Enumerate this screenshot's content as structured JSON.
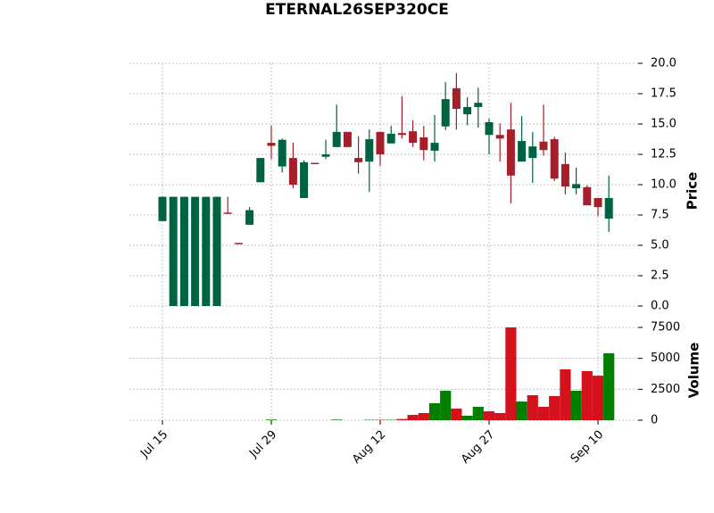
{
  "chart_data": {
    "type": "candlestick",
    "title": "ETERNAL26SEP320CE",
    "y_label": "Price",
    "y2_label": "Volume",
    "categories": [
      "Jul 15",
      null,
      null,
      null,
      null,
      null,
      null,
      null,
      null,
      null,
      "Jul 29",
      null,
      null,
      null,
      null,
      null,
      null,
      null,
      null,
      null,
      "Aug 12",
      null,
      null,
      null,
      null,
      null,
      null,
      null,
      null,
      null,
      "Aug 27",
      null,
      null,
      null,
      null,
      null,
      null,
      null,
      null,
      null,
      "Sep 10",
      null
    ],
    "open": [
      7.0,
      0,
      0,
      0,
      0,
      0,
      7.7,
      5.2,
      6.7,
      10.2,
      13.45,
      11.5,
      12.2,
      8.9,
      11.8,
      12.3,
      13.1,
      14.35,
      12.2,
      11.9,
      14.35,
      13.4,
      14.25,
      14.4,
      13.9,
      12.8,
      14.8,
      17.95,
      15.8,
      16.4,
      14.1,
      14.1,
      14.55,
      11.9,
      12.2,
      13.55,
      13.75,
      11.7,
      9.7,
      9.8,
      8.9,
      7.2
    ],
    "high": [
      9.0,
      9.0,
      9.0,
      9.0,
      9.0,
      9.0,
      9.0,
      5.2,
      8.15,
      12.2,
      14.85,
      13.8,
      13.45,
      12.0,
      11.8,
      13.7,
      16.6,
      14.35,
      14.0,
      14.55,
      14.35,
      14.85,
      17.3,
      15.3,
      14.85,
      15.75,
      18.45,
      19.2,
      17.2,
      18.0,
      15.45,
      15.05,
      16.75,
      15.65,
      14.35,
      16.6,
      13.95,
      12.65,
      11.4,
      9.95,
      8.9,
      10.75
    ],
    "low": [
      7.0,
      0,
      0,
      0,
      0,
      0,
      7.6,
      5.1,
      6.7,
      10.2,
      12.1,
      11.0,
      9.7,
      8.9,
      11.7,
      12.1,
      13.1,
      13.1,
      10.9,
      9.4,
      11.55,
      13.4,
      13.8,
      13.1,
      12.0,
      11.9,
      14.5,
      14.55,
      14.9,
      14.7,
      12.5,
      11.9,
      8.45,
      11.9,
      10.15,
      12.4,
      10.3,
      9.2,
      9.2,
      8.3,
      7.4,
      6.1
    ],
    "close": [
      9.0,
      9.0,
      9.0,
      9.0,
      9.0,
      9.0,
      7.6,
      5.1,
      7.9,
      12.2,
      13.2,
      13.7,
      10.0,
      11.85,
      11.7,
      12.5,
      14.35,
      13.1,
      11.85,
      13.75,
      12.5,
      14.2,
      14.1,
      13.45,
      12.85,
      13.45,
      17.05,
      16.25,
      16.4,
      16.75,
      15.15,
      13.8,
      10.75,
      13.6,
      13.15,
      12.85,
      10.5,
      9.85,
      10.05,
      8.3,
      8.15,
      8.9
    ],
    "volume": [
      0,
      0,
      0,
      0,
      0,
      0,
      0,
      0,
      0,
      0,
      50,
      0,
      0,
      0,
      0,
      0,
      50,
      0,
      0,
      30,
      30,
      30,
      100,
      430,
      580,
      1370,
      2380,
      940,
      360,
      1080,
      720,
      580,
      7500,
      1510,
      2020,
      1080,
      1950,
      4110,
      2380,
      3970,
      3600,
      5410
    ],
    "up_color": "#00633f",
    "down_color": "#a61e2a",
    "volume_up_color": "#007f00",
    "volume_down_color": "#d5111b",
    "ylim": [
      0,
      20
    ],
    "yticks": [
      {
        "value": 0,
        "label": "0.0"
      },
      {
        "value": 2.5,
        "label": "2.5"
      },
      {
        "value": 5,
        "label": "5.0"
      },
      {
        "value": 7.5,
        "label": "7.5"
      },
      {
        "value": 10,
        "label": "10.0"
      },
      {
        "value": 12.5,
        "label": "12.5"
      },
      {
        "value": 15,
        "label": "15.0"
      },
      {
        "value": 17.5,
        "label": "17.5"
      },
      {
        "value": 20,
        "label": "20.0"
      }
    ],
    "y2lim": [
      0,
      7500
    ],
    "y2ticks": [
      0,
      2500,
      5000,
      7500
    ],
    "grid": true
  }
}
